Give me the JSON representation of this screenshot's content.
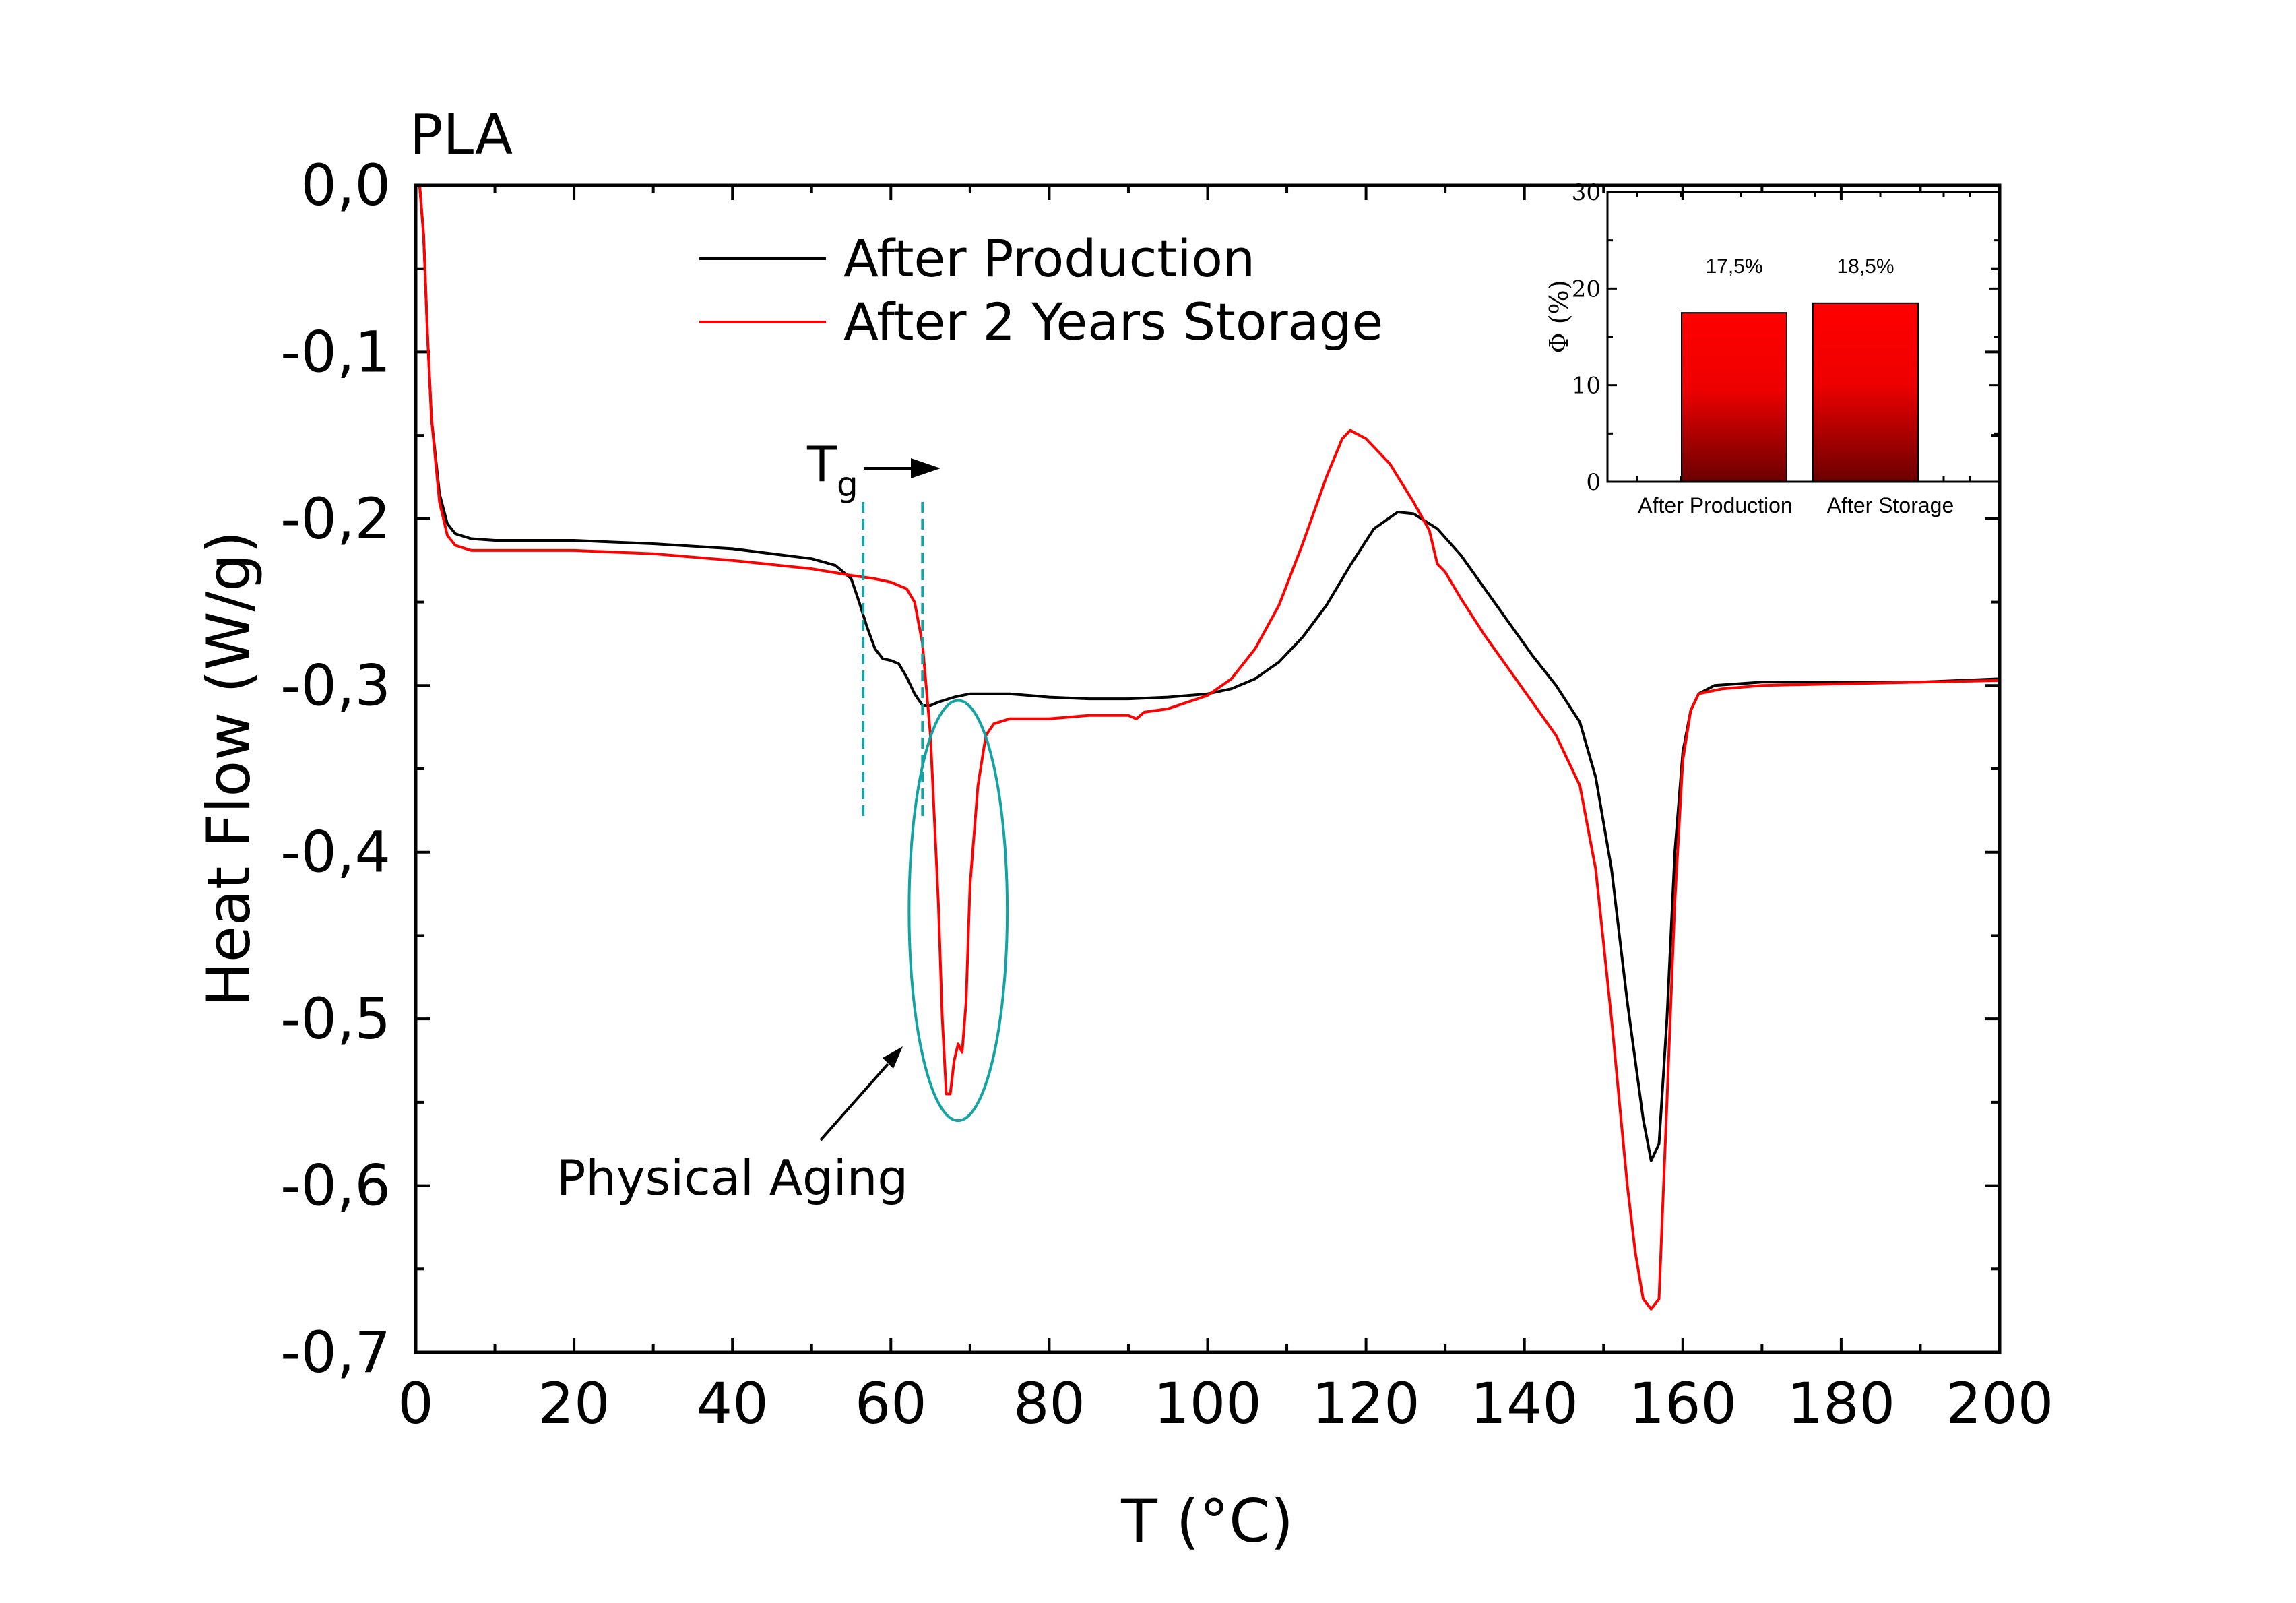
{
  "panel_label": "PLA",
  "colors": {
    "after_production": "#000000",
    "after_storage": "#ff0000",
    "annotation": "#13a3a3",
    "bar_top": "#ff0000",
    "bar_bottom": "#6b0000"
  },
  "chart_data": [
    {
      "type": "line",
      "title": "",
      "xlabel": "T (°C)",
      "ylabel": "Heat Flow (W/g)",
      "xlim": [
        0,
        200
      ],
      "ylim": [
        -0.7,
        0.0
      ],
      "x_ticks": [
        0,
        20,
        40,
        60,
        80,
        100,
        120,
        140,
        160,
        180,
        200
      ],
      "x_tick_labels": [
        "0",
        "20",
        "40",
        "60",
        "80",
        "100",
        "120",
        "140",
        "160",
        "180",
        "200"
      ],
      "y_ticks": [
        0,
        -0.1,
        -0.2,
        -0.3,
        -0.4,
        -0.5,
        -0.6,
        -0.7
      ],
      "y_tick_labels": [
        "0,0",
        "-0,1",
        "-0,2",
        "-0,3",
        "-0,4",
        "-0,5",
        "-0,6",
        "-0,7"
      ],
      "grid": false,
      "legend_position": "top-center",
      "series": [
        {
          "name": "After Production",
          "color": "#000000",
          "points": [
            [
              0.5,
              0.0
            ],
            [
              1,
              -0.03
            ],
            [
              1.5,
              -0.09
            ],
            [
              2,
              -0.14
            ],
            [
              3,
              -0.185
            ],
            [
              4,
              -0.203
            ],
            [
              5,
              -0.209
            ],
            [
              7,
              -0.212
            ],
            [
              10,
              -0.213
            ],
            [
              20,
              -0.213
            ],
            [
              30,
              -0.215
            ],
            [
              40,
              -0.218
            ],
            [
              50,
              -0.224
            ],
            [
              53,
              -0.228
            ],
            [
              55,
              -0.236
            ],
            [
              56,
              -0.25
            ],
            [
              57,
              -0.265
            ],
            [
              58,
              -0.278
            ],
            [
              59,
              -0.284
            ],
            [
              60,
              -0.285
            ],
            [
              61,
              -0.287
            ],
            [
              62,
              -0.295
            ],
            [
              63,
              -0.305
            ],
            [
              64,
              -0.312
            ],
            [
              65,
              -0.312
            ],
            [
              66,
              -0.31
            ],
            [
              68,
              -0.307
            ],
            [
              70,
              -0.305
            ],
            [
              75,
              -0.305
            ],
            [
              80,
              -0.307
            ],
            [
              85,
              -0.308
            ],
            [
              90,
              -0.308
            ],
            [
              95,
              -0.307
            ],
            [
              100,
              -0.305
            ],
            [
              103,
              -0.302
            ],
            [
              106,
              -0.296
            ],
            [
              109,
              -0.286
            ],
            [
              112,
              -0.271
            ],
            [
              115,
              -0.252
            ],
            [
              118,
              -0.228
            ],
            [
              121,
              -0.206
            ],
            [
              124,
              -0.196
            ],
            [
              126,
              -0.197
            ],
            [
              129,
              -0.206
            ],
            [
              132,
              -0.222
            ],
            [
              135,
              -0.242
            ],
            [
              138,
              -0.262
            ],
            [
              141,
              -0.282
            ],
            [
              144,
              -0.3
            ],
            [
              147,
              -0.322
            ],
            [
              149,
              -0.355
            ],
            [
              151,
              -0.41
            ],
            [
              153,
              -0.49
            ],
            [
              155,
              -0.56
            ],
            [
              156,
              -0.585
            ],
            [
              157,
              -0.575
            ],
            [
              158,
              -0.5
            ],
            [
              159,
              -0.4
            ],
            [
              160,
              -0.34
            ],
            [
              161,
              -0.315
            ],
            [
              162,
              -0.305
            ],
            [
              164,
              -0.3
            ],
            [
              170,
              -0.298
            ],
            [
              180,
              -0.298
            ],
            [
              190,
              -0.298
            ],
            [
              200,
              -0.296
            ]
          ]
        },
        {
          "name": "After 2 Years Storage",
          "color": "#ff0000",
          "points": [
            [
              0.5,
              0.0
            ],
            [
              1,
              -0.03
            ],
            [
              1.5,
              -0.09
            ],
            [
              2,
              -0.14
            ],
            [
              3,
              -0.19
            ],
            [
              4,
              -0.21
            ],
            [
              5,
              -0.216
            ],
            [
              7,
              -0.219
            ],
            [
              10,
              -0.219
            ],
            [
              20,
              -0.219
            ],
            [
              30,
              -0.221
            ],
            [
              40,
              -0.225
            ],
            [
              50,
              -0.23
            ],
            [
              55,
              -0.234
            ],
            [
              58,
              -0.236
            ],
            [
              60,
              -0.238
            ],
            [
              62,
              -0.242
            ],
            [
              63,
              -0.25
            ],
            [
              64,
              -0.275
            ],
            [
              65,
              -0.33
            ],
            [
              66,
              -0.43
            ],
            [
              66.5,
              -0.5
            ],
            [
              67,
              -0.545
            ],
            [
              67.5,
              -0.545
            ],
            [
              68,
              -0.525
            ],
            [
              68.5,
              -0.515
            ],
            [
              69,
              -0.52
            ],
            [
              69.5,
              -0.49
            ],
            [
              70,
              -0.42
            ],
            [
              71,
              -0.36
            ],
            [
              72,
              -0.33
            ],
            [
              73,
              -0.323
            ],
            [
              75,
              -0.32
            ],
            [
              80,
              -0.32
            ],
            [
              85,
              -0.318
            ],
            [
              90,
              -0.318
            ],
            [
              91,
              -0.32
            ],
            [
              92,
              -0.316
            ],
            [
              95,
              -0.314
            ],
            [
              100,
              -0.306
            ],
            [
              103,
              -0.296
            ],
            [
              106,
              -0.278
            ],
            [
              109,
              -0.252
            ],
            [
              112,
              -0.215
            ],
            [
              115,
              -0.175
            ],
            [
              117,
              -0.152
            ],
            [
              118,
              -0.147
            ],
            [
              120,
              -0.152
            ],
            [
              123,
              -0.167
            ],
            [
              126,
              -0.19
            ],
            [
              128,
              -0.207
            ],
            [
              129,
              -0.227
            ],
            [
              130,
              -0.232
            ],
            [
              132,
              -0.248
            ],
            [
              135,
              -0.27
            ],
            [
              138,
              -0.29
            ],
            [
              141,
              -0.31
            ],
            [
              144,
              -0.33
            ],
            [
              147,
              -0.36
            ],
            [
              149,
              -0.41
            ],
            [
              151,
              -0.5
            ],
            [
              153,
              -0.6
            ],
            [
              154,
              -0.64
            ],
            [
              155,
              -0.668
            ],
            [
              156,
              -0.674
            ],
            [
              157,
              -0.668
            ],
            [
              158,
              -0.55
            ],
            [
              159,
              -0.43
            ],
            [
              160,
              -0.345
            ],
            [
              161,
              -0.315
            ],
            [
              162,
              -0.305
            ],
            [
              165,
              -0.302
            ],
            [
              170,
              -0.3
            ],
            [
              180,
              -0.299
            ],
            [
              190,
              -0.298
            ],
            [
              200,
              -0.297
            ]
          ]
        }
      ],
      "annotations": {
        "tg_label": "T",
        "tg_subscript": "g",
        "physical_aging_label": "Physical Aging",
        "tg_dashed_lines_x": [
          56.5,
          64
        ],
        "ellipse_center": {
          "x": 68.5,
          "y": -0.435
        },
        "ellipse_radii": {
          "x": 6.2,
          "y": 0.126
        }
      }
    },
    {
      "type": "bar",
      "title": "",
      "xlabel": "",
      "ylabel": "Φ (%)",
      "ylim": [
        0,
        30
      ],
      "y_ticks": [
        0,
        10,
        20,
        30
      ],
      "y_tick_labels": [
        "0",
        "10",
        "20",
        "30"
      ],
      "categories": [
        "After Production",
        "After Storage"
      ],
      "values": [
        17.5,
        18.5
      ],
      "data_labels": [
        "17,5%",
        "18,5%"
      ]
    }
  ]
}
